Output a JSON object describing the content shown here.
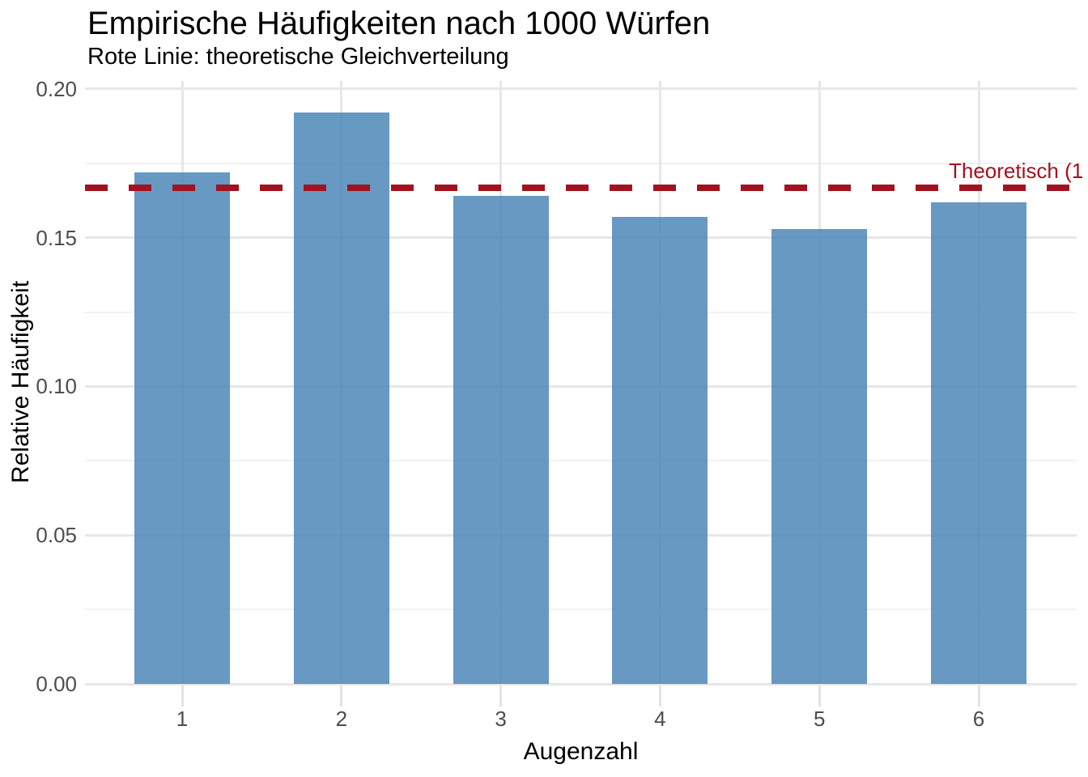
{
  "header": {
    "title": "Empirische Häufigkeiten nach 1000 Würfen",
    "subtitle": "Rote Linie: theoretische Gleichverteilung"
  },
  "chart_data": {
    "type": "bar",
    "title": "Empirische Häufigkeiten nach 1000 Würfen",
    "subtitle": "Rote Linie: theoretische Gleichverteilung",
    "xlabel": "Augenzahl",
    "ylabel": "Relative Häufigkeit",
    "categories": [
      "1",
      "2",
      "3",
      "4",
      "5",
      "6"
    ],
    "values": [
      0.172,
      0.192,
      0.164,
      0.157,
      0.153,
      0.162
    ],
    "ylim": [
      0,
      0.2027
    ],
    "yticks": {
      "values": [
        0,
        0.05,
        0.1,
        0.15,
        0.2
      ],
      "labels": [
        "0.00",
        "0.05",
        "0.10",
        "0.15",
        "0.20"
      ]
    },
    "yticks_minor": [
      0.025,
      0.075,
      0.125,
      0.175
    ],
    "grid": "horizontal major+minor, vertical major at category centers, light gray on white",
    "legend_position": "none",
    "bar_color": "#4682B4",
    "bar_opacity": 0.82,
    "reference_line": {
      "value": 0.1667,
      "style": "dashed",
      "color": "#A2131F",
      "label_visible": "Theoretisch (1",
      "label_color": "#A2131F"
    }
  },
  "colors": {
    "background": "#FFFFFF",
    "grid_major": "#E7E7E7",
    "grid_minor": "#F1F1F1",
    "axis_tick": "#E3E3E3",
    "axis_text": "#4D4D4D",
    "text": "#000000"
  }
}
